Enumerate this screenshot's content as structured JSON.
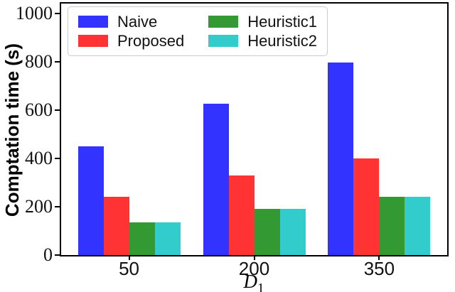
{
  "figure": {
    "ylabel": "Comptation time (s)",
    "xlabel_base": "D",
    "xlabel_sub": "1"
  },
  "chart_data": {
    "type": "bar",
    "title": "",
    "categories": [
      "50",
      "200",
      "350"
    ],
    "series": [
      {
        "name": "Naive",
        "color": "#3333ff",
        "values": [
          450,
          625,
          795
        ]
      },
      {
        "name": "Proposed",
        "color": "#ff3333",
        "values": [
          240,
          330,
          400
        ]
      },
      {
        "name": "Heuristic1",
        "color": "#339933",
        "values": [
          135,
          190,
          240
        ]
      },
      {
        "name": "Heuristic2",
        "color": "#33cccc",
        "values": [
          135,
          190,
          240
        ]
      }
    ],
    "ylabel": "Comptation time (s)",
    "xlabel": "D_1",
    "ylim": [
      0,
      1040
    ],
    "yticks": [
      0,
      200,
      400,
      600,
      800,
      1000
    ],
    "legend_position": "upper-left",
    "legend_columns": 2,
    "grid": false,
    "background": "#ffffff",
    "axis_color": "#000000"
  }
}
